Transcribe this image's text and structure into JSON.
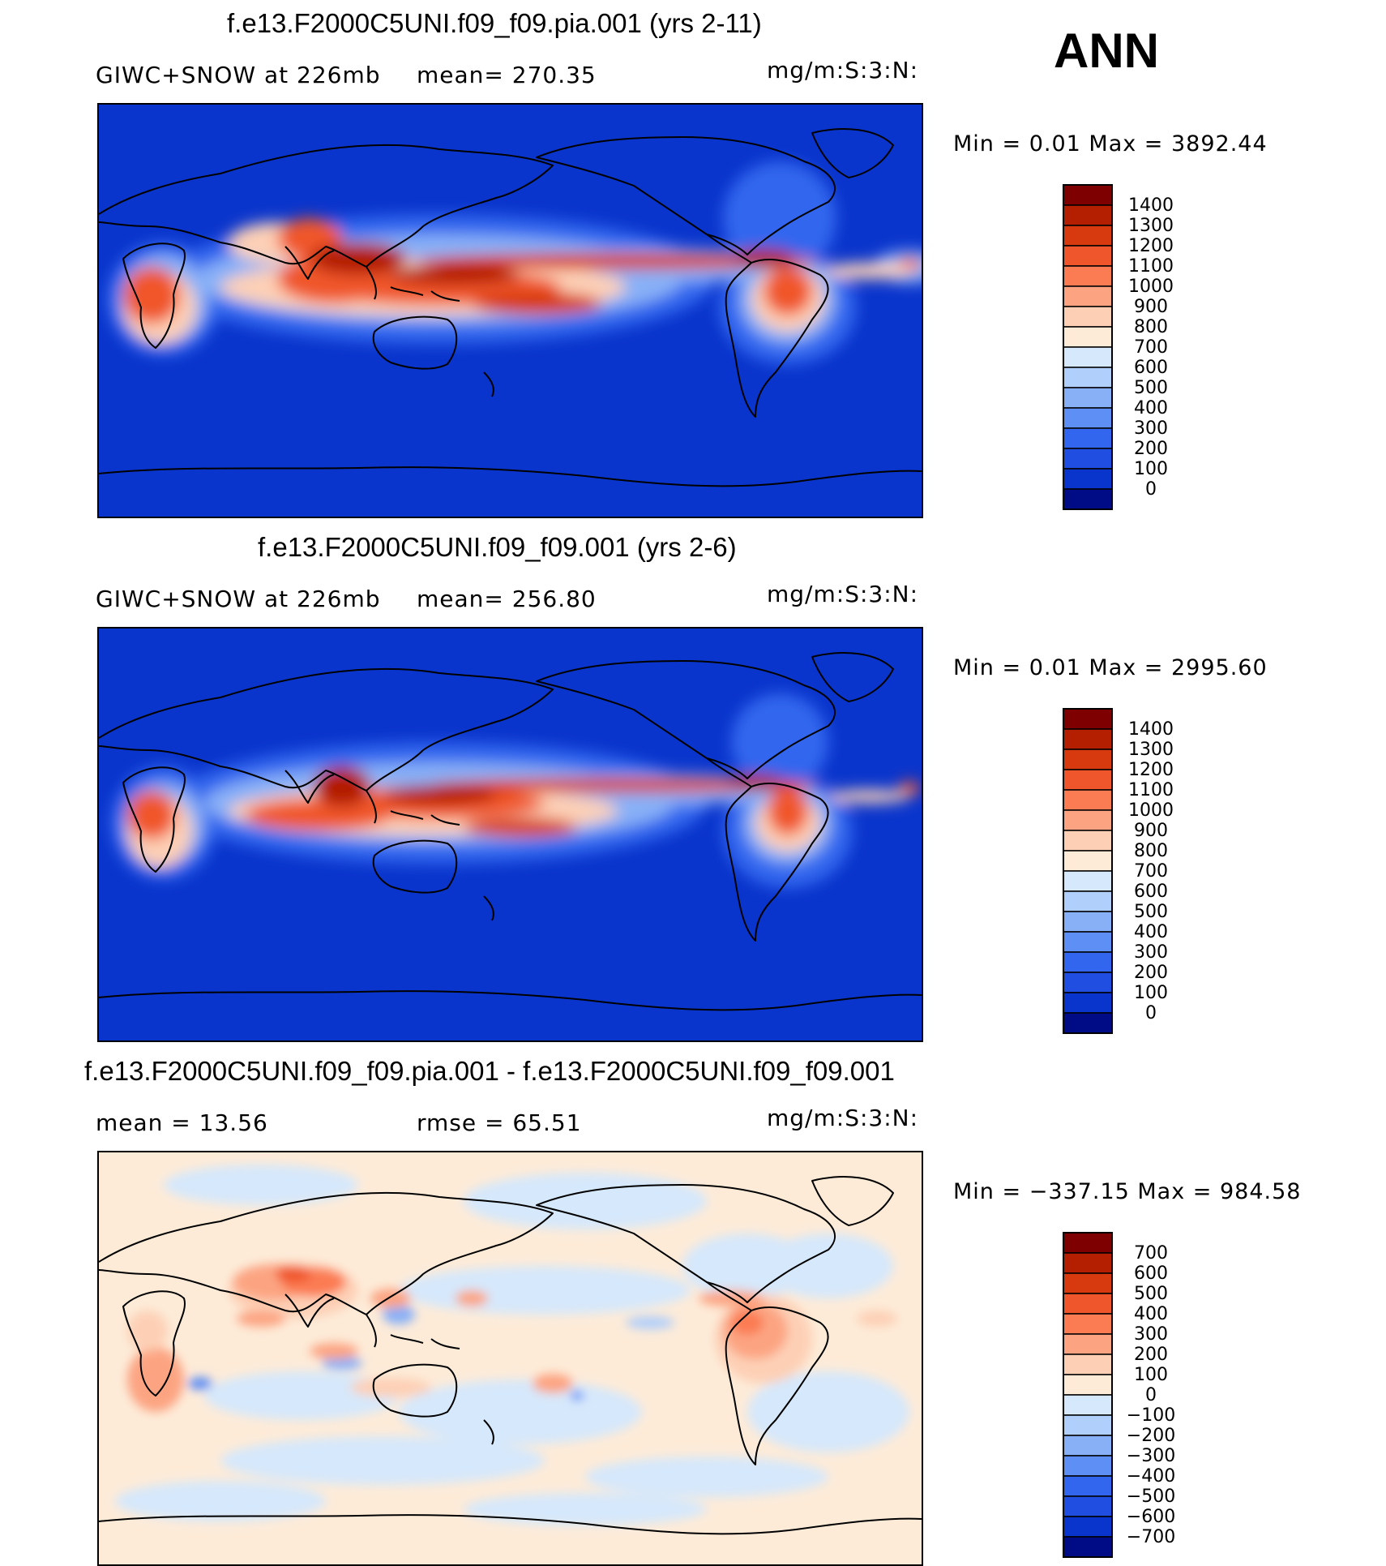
{
  "season_label": "ANN",
  "panels": [
    {
      "title": "f.e13.F2000C5UNI.f09_f09.pia.001 (yrs 2-11)",
      "left_label": "GIWC+SNOW  at  226mb",
      "stat_label": "mean=  270.35",
      "units": "mg/m:S:3:N:",
      "minmax": "Min  =     0.01  Max  =  3892.44",
      "colorbar": {
        "levels": [
          "1400",
          "1300",
          "1200",
          "1100",
          "1000",
          "900",
          "800",
          "700",
          "600",
          "500",
          "400",
          "300",
          "200",
          "100",
          "0"
        ],
        "colors": [
          "#7f0000",
          "#b31f00",
          "#d73a0e",
          "#f0562c",
          "#fb7b53",
          "#fca482",
          "#fdd0b6",
          "#fdebd8",
          "#d6e8fb",
          "#b0cffa",
          "#88b0f7",
          "#5e8ff4",
          "#3366ee",
          "#1f4ee0",
          "#0a35cc",
          "#000c85"
        ]
      }
    },
    {
      "title": "f.e13.F2000C5UNI.f09_f09.001 (yrs 2-6)",
      "left_label": "GIWC+SNOW  at  226mb",
      "stat_label": "mean=  256.80",
      "units": "mg/m:S:3:N:",
      "minmax": "Min  =     0.01  Max  =  2995.60",
      "colorbar": {
        "levels": [
          "1400",
          "1300",
          "1200",
          "1100",
          "1000",
          "900",
          "800",
          "700",
          "600",
          "500",
          "400",
          "300",
          "200",
          "100",
          "0"
        ],
        "colors": [
          "#7f0000",
          "#b31f00",
          "#d73a0e",
          "#f0562c",
          "#fb7b53",
          "#fca482",
          "#fdd0b6",
          "#fdebd8",
          "#d6e8fb",
          "#b0cffa",
          "#88b0f7",
          "#5e8ff4",
          "#3366ee",
          "#1f4ee0",
          "#0a35cc",
          "#000c85"
        ]
      }
    },
    {
      "title": "f.e13.F2000C5UNI.f09_f09.pia.001 - f.e13.F2000C5UNI.f09_f09.001",
      "left_label": "mean  =    13.56",
      "stat_label": "rmse  =    65.51",
      "units": "mg/m:S:3:N:",
      "minmax": "Min  = −337.15  Max  =  984.58",
      "colorbar": {
        "levels": [
          "700",
          "600",
          "500",
          "400",
          "300",
          "200",
          "100",
          "0",
          "−100",
          "−200",
          "−300",
          "−400",
          "−500",
          "−600",
          "−700"
        ],
        "colors": [
          "#7f0000",
          "#b31f00",
          "#d73a0e",
          "#f0562c",
          "#fb7b53",
          "#fca482",
          "#fdd0b6",
          "#fdebd8",
          "#d6e8fb",
          "#b0cffa",
          "#88b0f7",
          "#5e8ff4",
          "#3366ee",
          "#1f4ee0",
          "#0a35cc",
          "#000c85"
        ]
      }
    }
  ]
}
